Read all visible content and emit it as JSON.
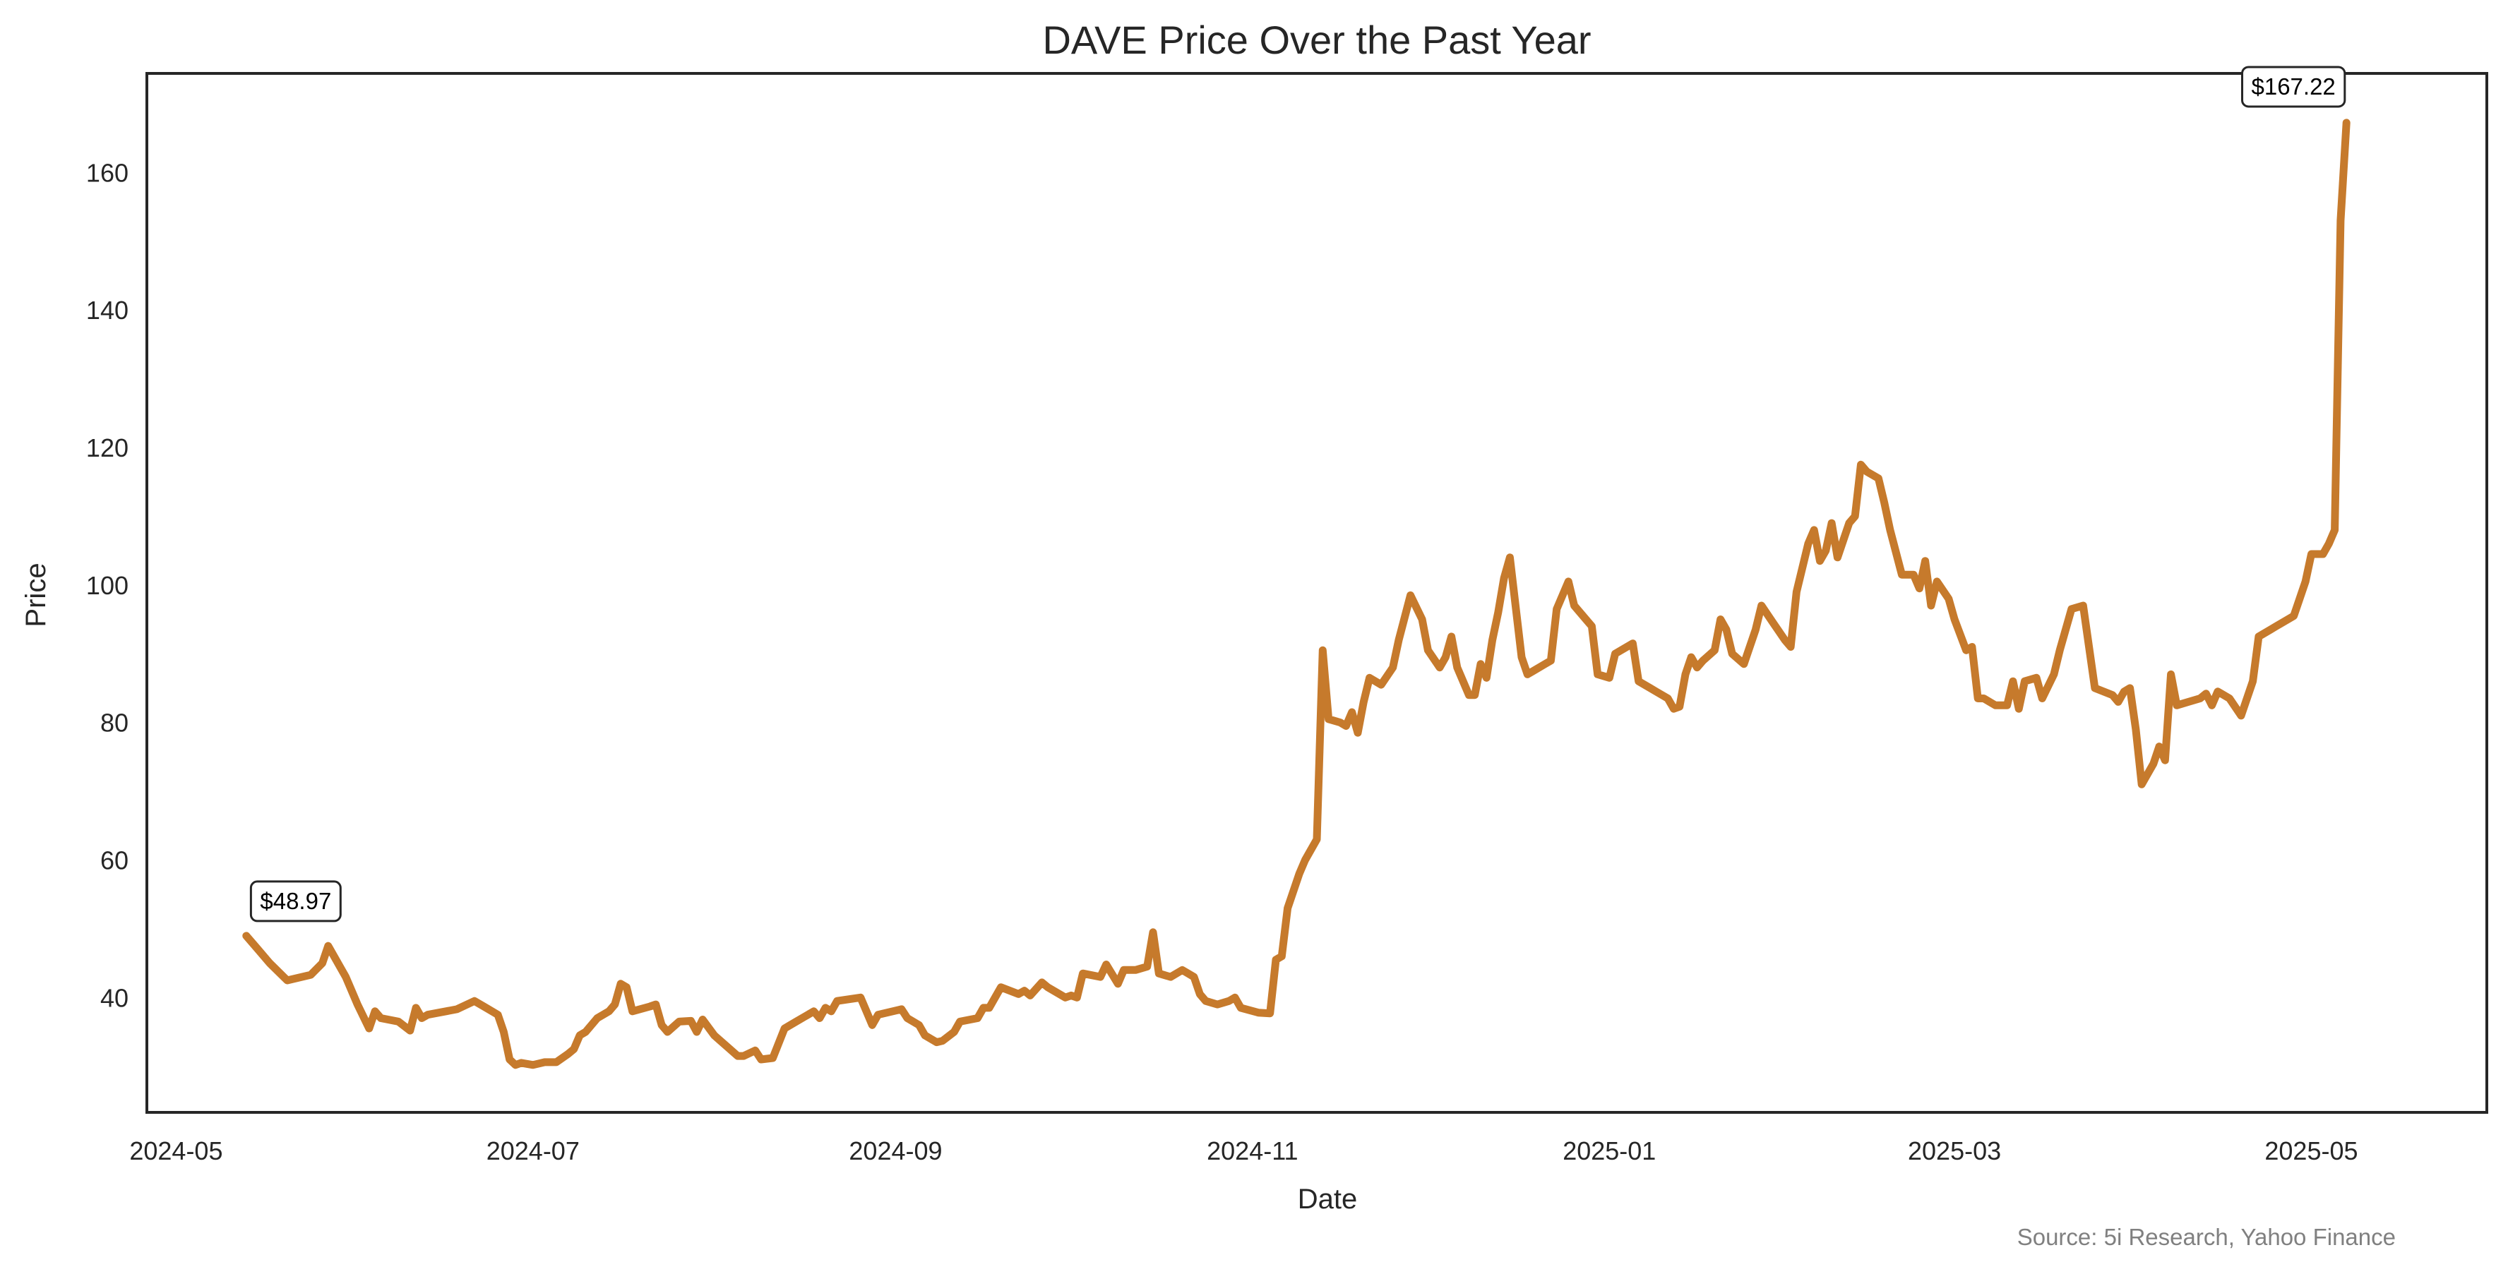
{
  "chart_data": {
    "type": "line",
    "title": "DAVE Price Over the Past Year",
    "xlabel": "Date",
    "ylabel": "Price",
    "source": "Source: 5i Research, Yahoo Finance",
    "line_color": "#C67A2C",
    "x_origin": "2024-05-01",
    "x_unit": "days since x_origin",
    "xlim_days": [
      -5,
      395
    ],
    "ylim": [
      23.3,
      174.4
    ],
    "grid": false,
    "x_ticks": [
      {
        "label": "2024-05",
        "day": 0
      },
      {
        "label": "2024-07",
        "day": 61
      },
      {
        "label": "2024-09",
        "day": 123
      },
      {
        "label": "2024-11",
        "day": 184
      },
      {
        "label": "2025-01",
        "day": 245
      },
      {
        "label": "2025-03",
        "day": 304
      },
      {
        "label": "2025-05",
        "day": 365
      }
    ],
    "y_ticks": [
      40,
      60,
      80,
      100,
      120,
      140,
      160
    ],
    "annotations": [
      {
        "label": "$48.97",
        "day": 12,
        "value": 48.97
      },
      {
        "label": "$167.22",
        "day": 371,
        "value": 167.22
      }
    ],
    "series": [
      {
        "name": "DAVE",
        "points": [
          [
            12,
            48.97
          ],
          [
            14,
            47
          ],
          [
            16,
            45
          ],
          [
            19,
            42.5
          ],
          [
            23,
            43.3
          ],
          [
            25,
            45
          ],
          [
            26,
            47.5
          ],
          [
            29,
            43
          ],
          [
            31,
            39
          ],
          [
            33,
            35.5
          ],
          [
            34,
            38
          ],
          [
            35,
            37
          ],
          [
            38,
            36.5
          ],
          [
            40,
            35.2
          ],
          [
            41,
            38.5
          ],
          [
            42,
            37
          ],
          [
            43,
            37.5
          ],
          [
            48,
            38.3
          ],
          [
            51,
            39.5
          ],
          [
            53,
            38.5
          ],
          [
            55,
            37.5
          ],
          [
            56,
            35
          ],
          [
            57,
            31
          ],
          [
            58,
            30.2
          ],
          [
            59,
            30.5
          ],
          [
            61,
            30.2
          ],
          [
            63,
            30.6
          ],
          [
            65,
            30.6
          ],
          [
            67,
            31.8
          ],
          [
            68,
            32.5
          ],
          [
            69,
            34.5
          ],
          [
            70,
            35
          ],
          [
            72,
            37
          ],
          [
            74,
            38
          ],
          [
            75,
            39
          ],
          [
            76,
            42
          ],
          [
            77,
            41.5
          ],
          [
            78,
            38
          ],
          [
            81,
            38.7
          ],
          [
            82,
            39
          ],
          [
            83,
            36
          ],
          [
            84,
            35
          ],
          [
            86,
            36.5
          ],
          [
            88,
            36.6
          ],
          [
            89,
            35
          ],
          [
            90,
            36.8
          ],
          [
            92,
            34.5
          ],
          [
            94,
            33
          ],
          [
            96,
            31.5
          ],
          [
            97,
            31.5
          ],
          [
            99,
            32.3
          ],
          [
            100,
            31
          ],
          [
            102,
            31.2
          ],
          [
            104,
            35.5
          ],
          [
            105,
            36
          ],
          [
            106,
            36.5
          ],
          [
            108,
            37.5
          ],
          [
            109,
            38
          ],
          [
            110,
            37
          ],
          [
            111,
            38.5
          ],
          [
            112,
            38
          ],
          [
            113,
            39.5
          ],
          [
            117,
            40
          ],
          [
            118,
            38
          ],
          [
            119,
            36
          ],
          [
            120,
            37.5
          ],
          [
            124,
            38.3
          ],
          [
            125,
            37
          ],
          [
            127,
            36
          ],
          [
            128,
            34.5
          ],
          [
            130,
            33.5
          ],
          [
            131,
            33.7
          ],
          [
            133,
            35
          ],
          [
            134,
            36.5
          ],
          [
            137,
            37
          ],
          [
            138,
            38.5
          ],
          [
            139,
            38.5
          ],
          [
            141,
            41.5
          ],
          [
            144,
            40.5
          ],
          [
            145,
            41
          ],
          [
            146,
            40.3
          ],
          [
            148,
            42.2
          ],
          [
            149,
            41.5
          ],
          [
            152,
            40
          ],
          [
            153,
            40.3
          ],
          [
            154,
            40
          ],
          [
            155,
            43.5
          ],
          [
            158,
            43
          ],
          [
            159,
            44.8
          ],
          [
            161,
            42
          ],
          [
            162,
            44
          ],
          [
            164,
            44
          ],
          [
            166,
            44.5
          ],
          [
            167,
            49.5
          ],
          [
            168,
            43.5
          ],
          [
            170,
            43
          ],
          [
            172,
            44
          ],
          [
            174,
            43
          ],
          [
            175,
            40.5
          ],
          [
            176,
            39.5
          ],
          [
            178,
            39
          ],
          [
            180,
            39.5
          ],
          [
            181,
            40
          ],
          [
            182,
            38.5
          ],
          [
            185,
            37.8
          ],
          [
            187,
            37.7
          ],
          [
            188,
            45.5
          ],
          [
            189,
            46
          ],
          [
            190,
            53
          ],
          [
            192,
            58
          ],
          [
            193,
            60
          ],
          [
            195,
            63
          ],
          [
            196,
            90.5
          ],
          [
            197,
            80.5
          ],
          [
            199,
            80
          ],
          [
            200,
            79.5
          ],
          [
            201,
            81.5
          ],
          [
            202,
            78.5
          ],
          [
            203,
            83
          ],
          [
            204,
            86.5
          ],
          [
            206,
            85.5
          ],
          [
            208,
            88
          ],
          [
            209,
            92
          ],
          [
            211,
            98.5
          ],
          [
            213,
            95
          ],
          [
            214,
            90.5
          ],
          [
            216,
            88
          ],
          [
            217,
            89.5
          ],
          [
            218,
            92.5
          ],
          [
            219,
            88
          ],
          [
            221,
            84
          ],
          [
            222,
            84
          ],
          [
            223,
            88.5
          ],
          [
            224,
            86.5
          ],
          [
            225,
            92
          ],
          [
            226,
            96
          ],
          [
            227,
            101
          ],
          [
            228,
            104
          ],
          [
            230,
            89.5
          ],
          [
            231,
            87
          ],
          [
            232,
            87.5
          ],
          [
            234,
            88.5
          ],
          [
            235,
            89
          ],
          [
            236,
            96.5
          ],
          [
            238,
            100.5
          ],
          [
            239,
            97
          ],
          [
            241,
            95
          ],
          [
            242,
            94
          ],
          [
            243,
            87
          ],
          [
            245,
            86.5
          ],
          [
            246,
            90
          ],
          [
            247,
            90.5
          ],
          [
            249,
            91.5
          ],
          [
            250,
            86
          ],
          [
            252,
            85
          ],
          [
            253,
            84.5
          ],
          [
            255,
            83.5
          ],
          [
            256,
            82
          ],
          [
            257,
            82.3
          ],
          [
            258,
            87
          ],
          [
            259,
            89.5
          ],
          [
            260,
            88
          ],
          [
            261,
            89
          ],
          [
            263,
            90.5
          ],
          [
            264,
            95
          ],
          [
            265,
            93.5
          ],
          [
            266,
            90
          ],
          [
            268,
            88.5
          ],
          [
            270,
            93.5
          ],
          [
            271,
            97
          ],
          [
            273,
            94.5
          ],
          [
            275,
            92
          ],
          [
            276,
            91
          ],
          [
            277,
            99
          ],
          [
            279,
            106
          ],
          [
            280,
            108
          ],
          [
            281,
            103.5
          ],
          [
            282,
            105
          ],
          [
            283,
            109
          ],
          [
            284,
            104
          ],
          [
            286,
            109
          ],
          [
            287,
            110
          ],
          [
            288,
            117.5
          ],
          [
            289,
            116.5
          ],
          [
            291,
            115.5
          ],
          [
            292,
            112
          ],
          [
            293,
            108
          ],
          [
            295,
            101.5
          ],
          [
            296,
            101.5
          ],
          [
            297,
            101.5
          ],
          [
            298,
            99.5
          ],
          [
            299,
            103.5
          ],
          [
            300,
            97
          ],
          [
            301,
            100.5
          ],
          [
            303,
            98
          ],
          [
            304,
            95
          ],
          [
            306,
            90.5
          ],
          [
            307,
            91
          ],
          [
            308,
            83.5
          ],
          [
            309,
            83.5
          ],
          [
            311,
            82.5
          ],
          [
            313,
            82.5
          ],
          [
            314,
            86
          ],
          [
            315,
            82
          ],
          [
            316,
            86
          ],
          [
            318,
            86.5
          ],
          [
            319,
            83.5
          ],
          [
            321,
            87
          ],
          [
            322,
            90.5
          ],
          [
            324,
            96.5
          ],
          [
            326,
            97
          ],
          [
            327,
            91
          ],
          [
            328,
            85
          ],
          [
            331,
            84
          ],
          [
            332,
            83
          ],
          [
            333,
            84.5
          ],
          [
            334,
            85
          ],
          [
            335,
            79
          ],
          [
            336,
            71
          ],
          [
            338,
            74
          ],
          [
            339,
            76.5
          ],
          [
            340,
            74.5
          ],
          [
            341,
            87
          ],
          [
            342,
            82.5
          ],
          [
            344,
            83
          ],
          [
            346,
            83.5
          ],
          [
            347,
            84.2
          ],
          [
            348,
            82.5
          ],
          [
            349,
            84.5
          ],
          [
            351,
            83.5
          ],
          [
            353,
            81
          ],
          [
            355,
            86
          ],
          [
            356,
            92.5
          ],
          [
            358,
            93.5
          ],
          [
            359,
            94
          ],
          [
            361,
            95
          ],
          [
            362,
            95.5
          ],
          [
            363,
            98
          ],
          [
            364,
            100.5
          ],
          [
            365,
            104.5
          ],
          [
            367,
            104.5
          ],
          [
            368,
            106
          ],
          [
            369,
            108
          ],
          [
            370,
            153
          ],
          [
            371,
            167.22
          ]
        ]
      }
    ]
  }
}
